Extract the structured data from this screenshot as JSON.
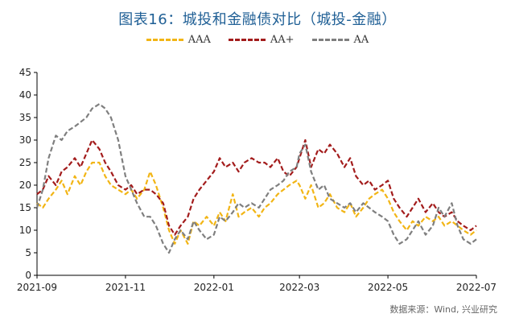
{
  "chart_data": {
    "type": "line",
    "title": "图表16：城投和金融债对比（城投-金融）",
    "source": "数据来源：Wind, 兴业研究",
    "y_ticks": [
      "0",
      "5",
      "10",
      "15",
      "20",
      "25",
      "30",
      "35",
      "40",
      "45"
    ],
    "ylim": [
      0,
      45
    ],
    "x_ticks": [
      "2021-09",
      "2021-11",
      "2022-01",
      "2022-03",
      "2022-05",
      "2022-07"
    ],
    "x_range": [
      "2021-09-01",
      "2022-07-01"
    ],
    "legend_position": "top-center",
    "series": [
      {
        "name": "AAA",
        "color": "#f2b515",
        "points": [
          [
            "2021-09-01",
            16
          ],
          [
            "2021-09-05",
            15
          ],
          [
            "2021-09-09",
            17
          ],
          [
            "2021-09-14",
            19
          ],
          [
            "2021-09-18",
            21
          ],
          [
            "2021-09-22",
            18
          ],
          [
            "2021-09-27",
            22
          ],
          [
            "2021-10-01",
            20
          ],
          [
            "2021-10-05",
            23
          ],
          [
            "2021-10-09",
            25
          ],
          [
            "2021-10-14",
            25
          ],
          [
            "2021-10-18",
            22
          ],
          [
            "2021-10-22",
            20
          ],
          [
            "2021-10-27",
            19
          ],
          [
            "2021-11-01",
            18
          ],
          [
            "2021-11-05",
            19
          ],
          [
            "2021-11-09",
            17
          ],
          [
            "2021-11-14",
            19
          ],
          [
            "2021-11-18",
            23
          ],
          [
            "2021-11-22",
            20
          ],
          [
            "2021-11-27",
            15
          ],
          [
            "2021-12-01",
            10
          ],
          [
            "2021-12-05",
            7
          ],
          [
            "2021-12-09",
            10
          ],
          [
            "2021-12-14",
            7
          ],
          [
            "2021-12-18",
            12
          ],
          [
            "2021-12-22",
            11
          ],
          [
            "2021-12-27",
            13
          ],
          [
            "2022-01-01",
            11
          ],
          [
            "2022-01-05",
            14
          ],
          [
            "2022-01-09",
            12
          ],
          [
            "2022-01-14",
            18
          ],
          [
            "2022-01-18",
            13
          ],
          [
            "2022-01-22",
            14
          ],
          [
            "2022-01-27",
            15
          ],
          [
            "2022-02-01",
            13
          ],
          [
            "2022-02-05",
            15
          ],
          [
            "2022-02-09",
            16
          ],
          [
            "2022-02-14",
            18
          ],
          [
            "2022-02-18",
            19
          ],
          [
            "2022-02-22",
            20
          ],
          [
            "2022-02-27",
            21
          ],
          [
            "2022-03-01",
            20
          ],
          [
            "2022-03-05",
            17
          ],
          [
            "2022-03-09",
            20
          ],
          [
            "2022-03-14",
            15
          ],
          [
            "2022-03-18",
            16
          ],
          [
            "2022-03-22",
            18
          ],
          [
            "2022-03-27",
            15
          ],
          [
            "2022-04-01",
            14
          ],
          [
            "2022-04-05",
            16
          ],
          [
            "2022-04-09",
            13
          ],
          [
            "2022-04-14",
            15
          ],
          [
            "2022-04-18",
            17
          ],
          [
            "2022-04-22",
            18
          ],
          [
            "2022-04-27",
            19
          ],
          [
            "2022-05-01",
            17
          ],
          [
            "2022-05-05",
            14
          ],
          [
            "2022-05-09",
            12
          ],
          [
            "2022-05-14",
            10
          ],
          [
            "2022-05-18",
            12
          ],
          [
            "2022-05-22",
            11
          ],
          [
            "2022-05-27",
            13
          ],
          [
            "2022-06-01",
            12
          ],
          [
            "2022-06-05",
            13
          ],
          [
            "2022-06-09",
            11
          ],
          [
            "2022-06-14",
            12
          ],
          [
            "2022-06-18",
            11
          ],
          [
            "2022-06-22",
            10
          ],
          [
            "2022-06-27",
            9
          ],
          [
            "2022-07-01",
            10
          ]
        ]
      },
      {
        "name": "AA+",
        "color": "#a31c1c",
        "points": [
          [
            "2021-09-01",
            18
          ],
          [
            "2021-09-05",
            19
          ],
          [
            "2021-09-09",
            22
          ],
          [
            "2021-09-14",
            20
          ],
          [
            "2021-09-18",
            23
          ],
          [
            "2021-09-22",
            24
          ],
          [
            "2021-09-27",
            26
          ],
          [
            "2021-10-01",
            24
          ],
          [
            "2021-10-05",
            27
          ],
          [
            "2021-10-09",
            30
          ],
          [
            "2021-10-14",
            28
          ],
          [
            "2021-10-18",
            25
          ],
          [
            "2021-10-22",
            23
          ],
          [
            "2021-10-27",
            20
          ],
          [
            "2021-11-01",
            19
          ],
          [
            "2021-11-05",
            20
          ],
          [
            "2021-11-09",
            18
          ],
          [
            "2021-11-14",
            19
          ],
          [
            "2021-11-18",
            19
          ],
          [
            "2021-11-22",
            18
          ],
          [
            "2021-11-27",
            16
          ],
          [
            "2021-12-01",
            11
          ],
          [
            "2021-12-05",
            9
          ],
          [
            "2021-12-09",
            11
          ],
          [
            "2021-12-14",
            13
          ],
          [
            "2021-12-18",
            17
          ],
          [
            "2021-12-22",
            19
          ],
          [
            "2021-12-27",
            21
          ],
          [
            "2022-01-01",
            23
          ],
          [
            "2022-01-05",
            26
          ],
          [
            "2022-01-09",
            24
          ],
          [
            "2022-01-14",
            25
          ],
          [
            "2022-01-18",
            23
          ],
          [
            "2022-01-22",
            25
          ],
          [
            "2022-01-27",
            26
          ],
          [
            "2022-02-01",
            25
          ],
          [
            "2022-02-05",
            25
          ],
          [
            "2022-02-09",
            24
          ],
          [
            "2022-02-14",
            26
          ],
          [
            "2022-02-18",
            23
          ],
          [
            "2022-02-22",
            22
          ],
          [
            "2022-02-27",
            24
          ],
          [
            "2022-03-01",
            26
          ],
          [
            "2022-03-05",
            30
          ],
          [
            "2022-03-09",
            24
          ],
          [
            "2022-03-14",
            28
          ],
          [
            "2022-03-18",
            27
          ],
          [
            "2022-03-22",
            29
          ],
          [
            "2022-03-27",
            27
          ],
          [
            "2022-04-01",
            24
          ],
          [
            "2022-04-05",
            26
          ],
          [
            "2022-04-09",
            22
          ],
          [
            "2022-04-14",
            20
          ],
          [
            "2022-04-18",
            21
          ],
          [
            "2022-04-22",
            19
          ],
          [
            "2022-04-27",
            20
          ],
          [
            "2022-05-01",
            21
          ],
          [
            "2022-05-05",
            17
          ],
          [
            "2022-05-09",
            15
          ],
          [
            "2022-05-14",
            13
          ],
          [
            "2022-05-18",
            15
          ],
          [
            "2022-05-22",
            17
          ],
          [
            "2022-05-27",
            14
          ],
          [
            "2022-06-01",
            16
          ],
          [
            "2022-06-05",
            14
          ],
          [
            "2022-06-09",
            13
          ],
          [
            "2022-06-14",
            14
          ],
          [
            "2022-06-18",
            12
          ],
          [
            "2022-06-22",
            11
          ],
          [
            "2022-06-27",
            10
          ],
          [
            "2022-07-01",
            11
          ]
        ]
      },
      {
        "name": "AA",
        "color": "#7f7f7f",
        "points": [
          [
            "2021-09-01",
            15
          ],
          [
            "2021-09-05",
            19
          ],
          [
            "2021-09-09",
            26
          ],
          [
            "2021-09-14",
            31
          ],
          [
            "2021-09-18",
            30
          ],
          [
            "2021-09-22",
            32
          ],
          [
            "2021-09-27",
            33
          ],
          [
            "2021-10-01",
            34
          ],
          [
            "2021-10-05",
            35
          ],
          [
            "2021-10-09",
            37
          ],
          [
            "2021-10-14",
            38
          ],
          [
            "2021-10-18",
            37
          ],
          [
            "2021-10-22",
            35
          ],
          [
            "2021-10-27",
            30
          ],
          [
            "2021-11-01",
            22
          ],
          [
            "2021-11-05",
            19
          ],
          [
            "2021-11-09",
            16
          ],
          [
            "2021-11-14",
            13
          ],
          [
            "2021-11-18",
            13
          ],
          [
            "2021-11-22",
            11
          ],
          [
            "2021-11-27",
            7
          ],
          [
            "2021-12-01",
            5
          ],
          [
            "2021-12-05",
            8
          ],
          [
            "2021-12-09",
            10
          ],
          [
            "2021-12-14",
            8
          ],
          [
            "2021-12-18",
            12
          ],
          [
            "2021-12-22",
            10
          ],
          [
            "2021-12-27",
            8
          ],
          [
            "2022-01-01",
            9
          ],
          [
            "2022-01-05",
            13
          ],
          [
            "2022-01-09",
            12
          ],
          [
            "2022-01-14",
            14
          ],
          [
            "2022-01-18",
            16
          ],
          [
            "2022-01-22",
            15
          ],
          [
            "2022-01-27",
            16
          ],
          [
            "2022-02-01",
            15
          ],
          [
            "2022-02-05",
            17
          ],
          [
            "2022-02-09",
            19
          ],
          [
            "2022-02-14",
            20
          ],
          [
            "2022-02-18",
            21
          ],
          [
            "2022-02-22",
            23
          ],
          [
            "2022-02-27",
            24
          ],
          [
            "2022-03-01",
            27
          ],
          [
            "2022-03-05",
            29
          ],
          [
            "2022-03-09",
            23
          ],
          [
            "2022-03-14",
            19
          ],
          [
            "2022-03-18",
            20
          ],
          [
            "2022-03-22",
            17
          ],
          [
            "2022-03-27",
            16
          ],
          [
            "2022-04-01",
            15
          ],
          [
            "2022-04-05",
            16
          ],
          [
            "2022-04-09",
            14
          ],
          [
            "2022-04-14",
            16
          ],
          [
            "2022-04-18",
            15
          ],
          [
            "2022-04-22",
            14
          ],
          [
            "2022-04-27",
            13
          ],
          [
            "2022-05-01",
            12
          ],
          [
            "2022-05-05",
            9
          ],
          [
            "2022-05-09",
            7
          ],
          [
            "2022-05-14",
            8
          ],
          [
            "2022-05-18",
            10
          ],
          [
            "2022-05-22",
            12
          ],
          [
            "2022-05-27",
            9
          ],
          [
            "2022-06-01",
            11
          ],
          [
            "2022-06-05",
            15
          ],
          [
            "2022-06-09",
            13
          ],
          [
            "2022-06-14",
            16
          ],
          [
            "2022-06-18",
            11
          ],
          [
            "2022-06-22",
            8
          ],
          [
            "2022-06-27",
            7
          ],
          [
            "2022-07-01",
            8
          ]
        ]
      }
    ]
  }
}
